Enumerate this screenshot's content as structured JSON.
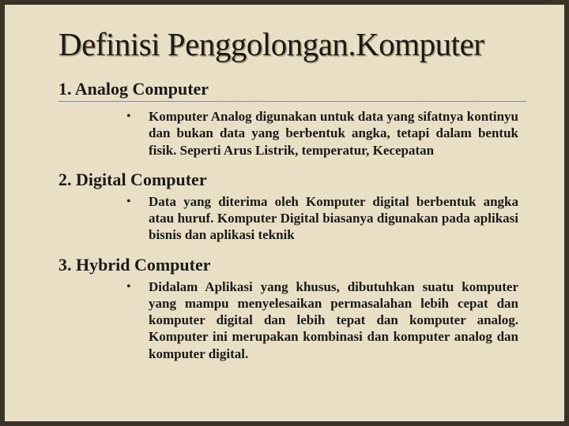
{
  "slide": {
    "background_color": "#e9dfc4",
    "frame_color": "#3a3428",
    "title": {
      "text": "Definisi Penggolongan.Komputer",
      "fontsize": 41,
      "color": "#1a1a1a",
      "shadow": "#b0a080"
    },
    "sections": [
      {
        "heading": "1. Analog Computer",
        "has_rule": true,
        "body": "Komputer Analog digunakan untuk data yang sifatnya kontinyu dan bukan data yang berbentuk angka, tetapi dalam bentuk fisik. Seperti Arus Listrik, temperatur, Kecepatan"
      },
      {
        "heading": "2. Digital Computer",
        "has_rule": false,
        "body": "Data yang diterima oleh Komputer digital berbentuk angka atau huruf. Komputer Digital biasanya digunakan pada aplikasi bisnis dan aplikasi teknik"
      },
      {
        "heading": "3. Hybrid Computer",
        "has_rule": false,
        "body": "Didalam Aplikasi yang khusus, dibutuhkan suatu komputer yang mampu menyelesaikan permasalahan lebih cepat dan komputer digital dan lebih tepat dan komputer analog. Komputer ini merupakan kombinasi dan komputer analog dan komputer digital."
      }
    ],
    "heading_fontsize": 22,
    "body_fontsize": 17,
    "bullet_char": "•"
  }
}
